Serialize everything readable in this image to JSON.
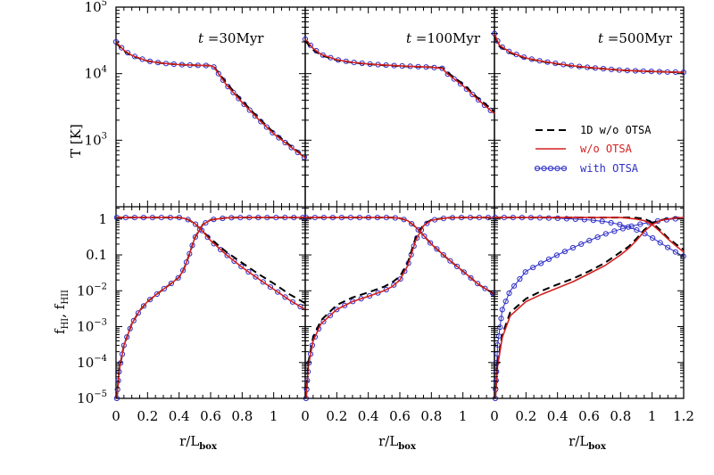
{
  "figure": {
    "colors": {
      "1d": "#000000",
      "no_otsa": "#d42020",
      "otsa": "#2e2ec8"
    }
  },
  "chart_data": {
    "type": "line",
    "layout": "2x3 grid, shared axes",
    "x_axis": {
      "label_main": "r/L",
      "label_sub": "box",
      "ticks": [
        0,
        0.2,
        0.4,
        0.6,
        0.8,
        1
      ],
      "tick_labels": [
        "0",
        "0.2",
        "0.4",
        "0.6",
        "0.8",
        "1"
      ],
      "last_panel_ticks": [
        0,
        0.2,
        0.4,
        0.6,
        0.8,
        1,
        1.2
      ],
      "last_panel_tick_labels": [
        "0",
        "0.2",
        "0.4",
        "0.6",
        "0.8",
        "1",
        "1.2"
      ],
      "xlim": [
        0,
        1.2
      ]
    },
    "top_axis": {
      "scale": "log",
      "ylabel": "T [K]",
      "ylim": [
        100,
        100000
      ],
      "tick_labels": [
        {
          "base": "10",
          "exp": "3",
          "value": 1000
        },
        {
          "base": "10",
          "exp": "4",
          "value": 10000
        },
        {
          "base": "10",
          "exp": "5",
          "value": 100000
        }
      ]
    },
    "bottom_axis": {
      "scale": "log",
      "ylabel_parts": {
        "f": "f",
        "hi": "HI",
        "sep": ", ",
        "hii": "HII"
      },
      "ylim": [
        1e-05,
        2.2
      ],
      "tick_labels": [
        {
          "text": "1",
          "value": 1
        },
        {
          "text": "0.1",
          "value": 0.1
        },
        {
          "base": "10",
          "exp": "−2",
          "value": 0.01
        },
        {
          "base": "10",
          "exp": "−3",
          "value": 0.001
        },
        {
          "base": "10",
          "exp": "−4",
          "value": 0.0001
        },
        {
          "base": "10",
          "exp": "−5",
          "value": 1e-05
        }
      ]
    },
    "legend": {
      "placement": "right, top row third panel",
      "entries": [
        {
          "key": "1d",
          "label": "1D w/o OTSA",
          "style": "dashed black"
        },
        {
          "key": "no_otsa",
          "label": "w/o OTSA",
          "style": "solid red"
        },
        {
          "key": "otsa",
          "label": "with OTSA",
          "style": "blue open circles"
        }
      ]
    },
    "panels": [
      {
        "time_italic": "t",
        "time_rest": " =30Myr",
        "temperature": {
          "x": [
            0,
            0.05,
            0.1,
            0.2,
            0.3,
            0.4,
            0.5,
            0.6,
            0.62,
            0.7,
            0.8,
            0.9,
            1.0,
            1.1,
            1.2
          ],
          "1d": [
            29000,
            22000,
            18500,
            15500,
            14300,
            13700,
            13400,
            13200,
            12800,
            7200,
            3900,
            2200,
            1300,
            850,
            550
          ],
          "no_otsa": [
            30000,
            22500,
            18800,
            15500,
            14300,
            13700,
            13400,
            13200,
            12600,
            6800,
            3700,
            2100,
            1250,
            820,
            540
          ],
          "otsa": [
            30000,
            22500,
            18800,
            15500,
            14300,
            13700,
            13400,
            13200,
            12600,
            6800,
            3700,
            2100,
            1250,
            820,
            540
          ]
        },
        "ionization": {
          "x": [
            0.005,
            0.02,
            0.05,
            0.1,
            0.15,
            0.2,
            0.25,
            0.3,
            0.35,
            0.4,
            0.43,
            0.46,
            0.5,
            0.55,
            0.6,
            0.7,
            0.8,
            0.9,
            1.0,
            1.1,
            1.2
          ],
          "hii": [
            1.1,
            1.1,
            1.1,
            1.1,
            1.1,
            1.1,
            1.1,
            1.1,
            1.1,
            1.1,
            1.05,
            0.95,
            0.75,
            0.45,
            0.25,
            0.1,
            0.045,
            0.022,
            0.011,
            0.0055,
            0.003
          ],
          "hi_1d": [
            1e-05,
            6e-05,
            0.0003,
            0.0012,
            0.0028,
            0.005,
            0.0075,
            0.011,
            0.016,
            0.024,
            0.04,
            0.09,
            0.3,
            0.7,
            0.95,
            1.08,
            1.1,
            1.1,
            1.1,
            1.1,
            1.1
          ],
          "hi_no": [
            1e-05,
            6e-05,
            0.0003,
            0.0012,
            0.0028,
            0.005,
            0.0075,
            0.011,
            0.016,
            0.024,
            0.04,
            0.09,
            0.3,
            0.7,
            0.95,
            1.08,
            1.1,
            1.1,
            1.1,
            1.1,
            1.1
          ],
          "hii_1d": [
            1.1,
            1.1,
            1.1,
            1.1,
            1.1,
            1.1,
            1.1,
            1.1,
            1.1,
            1.1,
            1.05,
            0.95,
            0.75,
            0.45,
            0.28,
            0.12,
            0.06,
            0.03,
            0.016,
            0.008,
            0.0045
          ]
        }
      },
      {
        "time_italic": "t",
        "time_rest": " =100Myr",
        "temperature": {
          "x": [
            0,
            0.05,
            0.1,
            0.2,
            0.3,
            0.4,
            0.5,
            0.6,
            0.7,
            0.8,
            0.87,
            0.9,
            1.0,
            1.1,
            1.2
          ],
          "1d": [
            31000,
            23000,
            19000,
            16000,
            14700,
            13900,
            13400,
            13000,
            12700,
            12500,
            12200,
            10500,
            7000,
            4200,
            2700
          ],
          "no_otsa": [
            33000,
            24000,
            19500,
            16200,
            14800,
            14000,
            13500,
            13100,
            12800,
            12500,
            12000,
            10000,
            6600,
            4000,
            2500
          ],
          "otsa": [
            33000,
            24000,
            19500,
            16200,
            14800,
            14000,
            13500,
            13100,
            12800,
            12500,
            12000,
            10000,
            6600,
            4000,
            2500
          ]
        },
        "ionization": {
          "x": [
            0.005,
            0.02,
            0.05,
            0.1,
            0.2,
            0.3,
            0.4,
            0.5,
            0.55,
            0.6,
            0.65,
            0.7,
            0.75,
            0.8,
            0.9,
            1.0,
            1.1,
            1.2
          ],
          "hii": [
            1.1,
            1.1,
            1.1,
            1.1,
            1.1,
            1.1,
            1.1,
            1.1,
            1.1,
            1.05,
            0.9,
            0.6,
            0.35,
            0.2,
            0.08,
            0.035,
            0.015,
            0.008
          ],
          "hi_1d": [
            1e-05,
            0.0001,
            0.0005,
            0.0015,
            0.004,
            0.0065,
            0.009,
            0.013,
            0.017,
            0.025,
            0.06,
            0.3,
            0.7,
            0.95,
            1.08,
            1.1,
            1.1,
            1.1
          ],
          "hi_no": [
            1e-05,
            8e-05,
            0.0004,
            0.0012,
            0.003,
            0.005,
            0.007,
            0.01,
            0.013,
            0.02,
            0.05,
            0.25,
            0.65,
            0.92,
            1.08,
            1.1,
            1.1,
            1.1
          ],
          "hii_1d": [
            1.1,
            1.1,
            1.1,
            1.1,
            1.1,
            1.1,
            1.1,
            1.1,
            1.1,
            1.05,
            0.9,
            0.6,
            0.35,
            0.2,
            0.08,
            0.035,
            0.015,
            0.008
          ]
        }
      },
      {
        "time_italic": "t",
        "time_rest": " =500Myr",
        "temperature": {
          "x": [
            0,
            0.03,
            0.1,
            0.2,
            0.3,
            0.4,
            0.5,
            0.6,
            0.7,
            0.8,
            0.9,
            1.0,
            1.1,
            1.2
          ],
          "1d": [
            38000,
            26000,
            20500,
            17000,
            15300,
            14000,
            13000,
            12300,
            11800,
            11300,
            11000,
            10800,
            10600,
            10500
          ],
          "no_otsa": [
            40000,
            27000,
            21000,
            17200,
            15400,
            14100,
            13100,
            12400,
            11800,
            11300,
            11000,
            10800,
            10600,
            10500
          ],
          "otsa": [
            40000,
            27000,
            21000,
            17200,
            15400,
            14100,
            13100,
            12400,
            11800,
            11300,
            11000,
            10800,
            10600,
            10500
          ]
        },
        "ionization": {
          "x_solid": [
            0.005,
            0.02,
            0.05,
            0.1,
            0.2,
            0.3,
            0.4,
            0.5,
            0.6,
            0.7,
            0.8,
            0.85,
            0.9,
            0.95,
            1.0,
            1.05,
            1.1,
            1.15,
            1.2
          ],
          "hii_no": [
            1.1,
            1.1,
            1.1,
            1.1,
            1.1,
            1.1,
            1.1,
            1.1,
            1.1,
            1.1,
            1.1,
            1.05,
            1.0,
            0.9,
            0.7,
            0.45,
            0.28,
            0.18,
            0.12
          ],
          "hi_no": [
            1e-05,
            8e-05,
            0.0005,
            0.002,
            0.005,
            0.008,
            0.012,
            0.018,
            0.03,
            0.05,
            0.1,
            0.15,
            0.25,
            0.45,
            0.7,
            0.9,
            1.0,
            1.07,
            1.1
          ],
          "hii_1d": [
            1.1,
            1.1,
            1.1,
            1.1,
            1.1,
            1.1,
            1.1,
            1.1,
            1.1,
            1.1,
            1.1,
            1.1,
            1.08,
            1.02,
            0.8,
            0.5,
            0.3,
            0.2,
            0.14
          ],
          "hi_1d": [
            1e-05,
            0.0001,
            0.0006,
            0.0025,
            0.006,
            0.01,
            0.015,
            0.022,
            0.035,
            0.06,
            0.12,
            0.17,
            0.28,
            0.5,
            0.75,
            0.92,
            1.02,
            1.08,
            1.1
          ],
          "x_otsa": [
            0.005,
            0.02,
            0.05,
            0.1,
            0.2,
            0.3,
            0.4,
            0.5,
            0.6,
            0.7,
            0.8,
            0.85,
            0.9,
            0.95,
            1.0,
            1.05,
            1.1,
            1.15,
            1.2
          ],
          "hii_otsa": [
            1.1,
            1.1,
            1.1,
            1.1,
            1.1,
            1.08,
            1.05,
            1.0,
            0.95,
            0.85,
            0.7,
            0.6,
            0.5,
            0.4,
            0.3,
            0.22,
            0.16,
            0.12,
            0.09
          ],
          "hi_otsa": [
            1e-05,
            0.0003,
            0.003,
            0.01,
            0.035,
            0.06,
            0.1,
            0.16,
            0.25,
            0.38,
            0.52,
            0.6,
            0.68,
            0.76,
            0.83,
            0.9,
            0.96,
            1.02,
            1.06
          ]
        }
      }
    ]
  }
}
